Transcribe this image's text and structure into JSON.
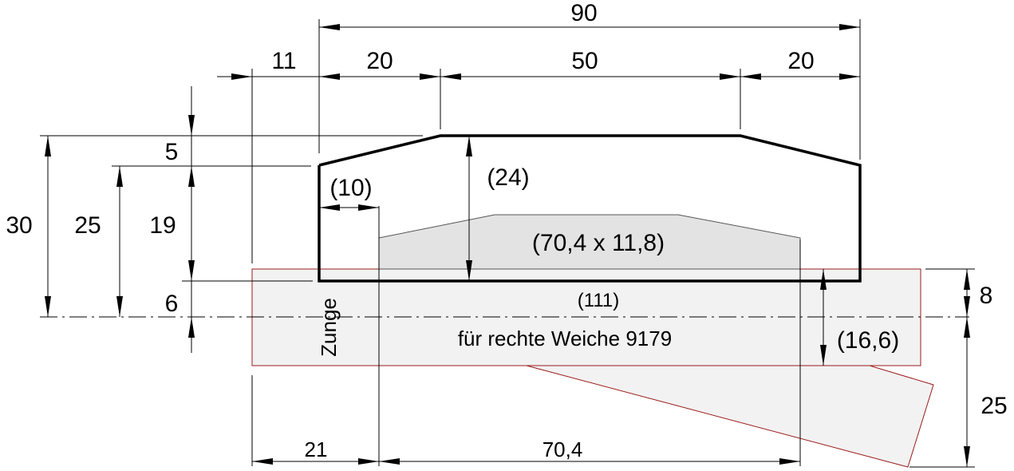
{
  "dimensions": {
    "total_width": "90",
    "offset_left": "11",
    "slope_left": "20",
    "top_flat": "50",
    "slope_right": "20",
    "height_30": "30",
    "height_25": "25",
    "seg_5": "5",
    "seg_19": "19",
    "seg_6": "6",
    "inner_height": "(24)",
    "inner_offset": "(10)",
    "opening": "(70,4 x 11,8)",
    "base_length": "(111)",
    "right_8": "8",
    "right_16_6": "(16,6)",
    "right_25": "25",
    "bottom_21": "21",
    "bottom_70_4": "70,4"
  },
  "labels": {
    "zunge": "Zunge",
    "caption": "für rechte Weiche 9179"
  }
}
